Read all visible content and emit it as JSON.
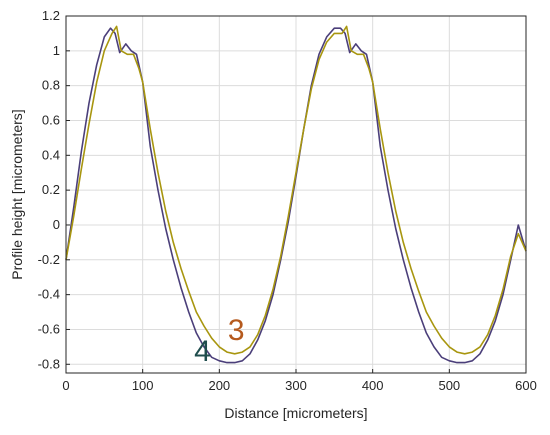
{
  "chart_data": {
    "type": "line",
    "title": "",
    "xlabel": "Distance [micrometers]",
    "ylabel": "Profile height [micrometers]",
    "xlim": [
      0,
      600
    ],
    "ylim": [
      -0.85,
      1.2
    ],
    "xticks": [
      0,
      100,
      200,
      300,
      400,
      500,
      600
    ],
    "yticks": [
      -0.8,
      -0.6,
      -0.4,
      -0.2,
      0,
      0.2,
      0.4,
      0.6,
      0.8,
      1,
      1.2
    ],
    "xtick_labels": [
      "0",
      "100",
      "200",
      "300",
      "400",
      "500",
      "600"
    ],
    "ytick_labels": [
      "-0.8",
      "-0.6",
      "-0.4",
      "-0.2",
      "0",
      "0.2",
      "0.4",
      "0.6",
      "0.8",
      "1",
      "1.2"
    ],
    "grid": true,
    "series": [
      {
        "name": "4",
        "color": "#4b3f7a",
        "x": [
          0,
          10,
          20,
          30,
          40,
          50,
          58,
          64,
          70,
          78,
          85,
          92,
          100,
          110,
          120,
          130,
          140,
          150,
          160,
          170,
          180,
          190,
          200,
          210,
          220,
          230,
          240,
          250,
          260,
          270,
          280,
          290,
          300,
          310,
          320,
          330,
          340,
          350,
          358,
          364,
          370,
          378,
          385,
          392,
          400,
          410,
          420,
          430,
          440,
          450,
          460,
          470,
          480,
          490,
          500,
          510,
          520,
          530,
          540,
          550,
          560,
          570,
          580,
          590,
          600
        ],
        "y": [
          -0.2,
          0.1,
          0.42,
          0.7,
          0.92,
          1.08,
          1.13,
          1.1,
          0.99,
          1.04,
          1.0,
          0.98,
          0.82,
          0.45,
          0.2,
          -0.02,
          -0.2,
          -0.36,
          -0.5,
          -0.62,
          -0.7,
          -0.76,
          -0.78,
          -0.79,
          -0.79,
          -0.78,
          -0.74,
          -0.66,
          -0.55,
          -0.4,
          -0.2,
          0.02,
          0.28,
          0.55,
          0.8,
          0.98,
          1.08,
          1.13,
          1.13,
          1.1,
          0.99,
          1.04,
          1.0,
          0.98,
          0.82,
          0.45,
          0.2,
          -0.02,
          -0.2,
          -0.36,
          -0.5,
          -0.62,
          -0.7,
          -0.76,
          -0.78,
          -0.79,
          -0.79,
          -0.78,
          -0.74,
          -0.66,
          -0.55,
          -0.4,
          -0.2,
          0.0,
          -0.15
        ]
      },
      {
        "name": "3",
        "color": "#a8960f",
        "x": [
          0,
          10,
          20,
          30,
          40,
          50,
          60,
          66,
          72,
          80,
          88,
          95,
          100,
          110,
          120,
          130,
          140,
          150,
          160,
          170,
          180,
          190,
          200,
          210,
          220,
          230,
          240,
          250,
          260,
          270,
          280,
          290,
          300,
          310,
          320,
          330,
          340,
          350,
          360,
          366,
          372,
          380,
          388,
          395,
          400,
          410,
          420,
          430,
          440,
          450,
          460,
          470,
          480,
          490,
          500,
          510,
          520,
          530,
          540,
          550,
          560,
          570,
          580,
          590,
          600
        ],
        "y": [
          -0.2,
          0.05,
          0.32,
          0.58,
          0.82,
          1.0,
          1.1,
          1.14,
          1.0,
          0.98,
          0.98,
          0.9,
          0.82,
          0.55,
          0.3,
          0.08,
          -0.1,
          -0.25,
          -0.38,
          -0.5,
          -0.58,
          -0.65,
          -0.7,
          -0.73,
          -0.74,
          -0.73,
          -0.7,
          -0.63,
          -0.52,
          -0.37,
          -0.18,
          0.05,
          0.3,
          0.55,
          0.78,
          0.95,
          1.05,
          1.1,
          1.1,
          1.14,
          1.0,
          0.98,
          0.98,
          0.9,
          0.82,
          0.55,
          0.3,
          0.08,
          -0.1,
          -0.25,
          -0.38,
          -0.5,
          -0.58,
          -0.65,
          -0.7,
          -0.73,
          -0.74,
          -0.73,
          -0.7,
          -0.63,
          -0.52,
          -0.37,
          -0.18,
          -0.05,
          -0.15
        ]
      }
    ],
    "annotations": [
      {
        "text": "4",
        "x": 178,
        "y": -0.78,
        "color": "#1f4d4d"
      },
      {
        "text": "3",
        "x": 222,
        "y": -0.66,
        "color": "#b55a1e"
      }
    ]
  }
}
